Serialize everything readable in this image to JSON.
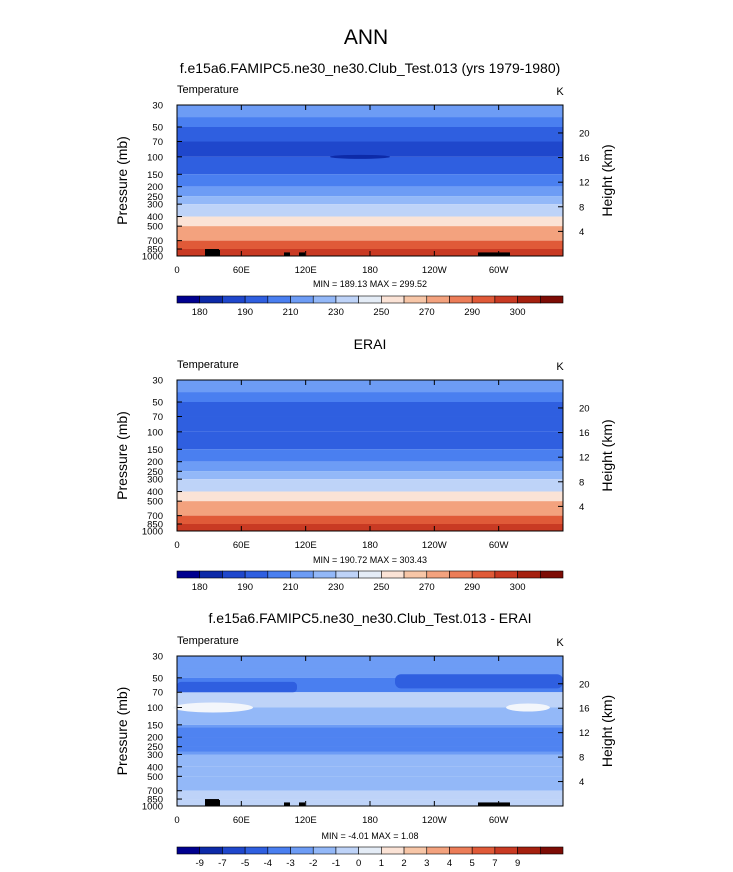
{
  "page": {
    "title": "ANN"
  },
  "colors": {
    "temp_palette": [
      "#00008f",
      "#0d2aa8",
      "#1f47cc",
      "#2f5fe0",
      "#4a7ff0",
      "#6d9cf5",
      "#93b8f8",
      "#bed3f8",
      "#e4ecf6",
      "#fbe3d6",
      "#f7c6a7",
      "#f3a27e",
      "#ec7d58",
      "#e05a38",
      "#c93a23",
      "#a5200f",
      "#7d0c05"
    ],
    "diff_palette": [
      "#00008f",
      "#0d2aa8",
      "#1f47cc",
      "#2f5fe0",
      "#4a7ff0",
      "#6d9cf5",
      "#93b8f8",
      "#bed3f8",
      "#e4ecf6",
      "#fbe3d6",
      "#f7c6a7",
      "#f3a27e",
      "#ec7d58",
      "#e05a38",
      "#c93a23",
      "#a5200f",
      "#7d0c05"
    ]
  },
  "panels": [
    {
      "title": "f.e15a6.FAMIPC5.ne30_ne30.Club_Test.013 (yrs 1979-1980)",
      "variable": "Temperature",
      "units": "K",
      "stats": "MIN = 189.13  MAX = 299.52",
      "colorbar_labels": [
        "180",
        "190",
        "210",
        "230",
        "250",
        "270",
        "290",
        "300"
      ]
    },
    {
      "title": "ERAI",
      "variable": "Temperature",
      "units": "K",
      "stats": "MIN = 190.72  MAX = 303.43",
      "colorbar_labels": [
        "180",
        "190",
        "210",
        "230",
        "250",
        "270",
        "290",
        "300"
      ]
    },
    {
      "title": "f.e15a6.FAMIPC5.ne30_ne30.Club_Test.013 - ERAI",
      "variable": "Temperature",
      "units": "K",
      "stats": "MIN = -4.01  MAX =  1.08",
      "colorbar_labels": [
        "-9",
        "-7",
        "-5",
        "-4",
        "-3",
        "-2",
        "-1",
        "0",
        "1",
        "2",
        "3",
        "4",
        "5",
        "7",
        "9"
      ]
    }
  ],
  "chart_data": [
    {
      "type": "heatmap",
      "title": "f.e15a6.FAMIPC5.ne30_ne30.Club_Test.013 (yrs 1979-1980)",
      "xlabel": "",
      "ylabel": "Pressure (mb)",
      "y2label": "Height (km)",
      "x_ticks": [
        "0",
        "60E",
        "120E",
        "180",
        "120W",
        "60W"
      ],
      "y_ticks": [
        "30",
        "50",
        "70",
        "100",
        "150",
        "200",
        "250",
        "300",
        "400",
        "500",
        "700",
        "850",
        "1000"
      ],
      "y2_ticks": [
        "20",
        "16",
        "12",
        "8",
        "4"
      ],
      "pressure_levels": [
        30,
        50,
        70,
        100,
        150,
        200,
        250,
        300,
        400,
        500,
        700,
        850,
        1000
      ],
      "band_color_index": [
        5,
        4,
        3,
        2,
        3,
        4,
        5,
        6,
        7,
        9,
        11,
        13,
        14,
        16
      ],
      "min": 189.13,
      "max": 299.52
    },
    {
      "type": "heatmap",
      "title": "ERAI",
      "xlabel": "",
      "ylabel": "Pressure (mb)",
      "y2label": "Height (km)",
      "x_ticks": [
        "0",
        "60E",
        "120E",
        "180",
        "120W",
        "60W"
      ],
      "y_ticks": [
        "30",
        "50",
        "70",
        "100",
        "150",
        "200",
        "250",
        "300",
        "400",
        "500",
        "700",
        "850",
        "1000"
      ],
      "y2_ticks": [
        "20",
        "16",
        "12",
        "8",
        "4"
      ],
      "pressure_levels": [
        30,
        50,
        70,
        100,
        150,
        200,
        250,
        300,
        400,
        500,
        700,
        850,
        1000
      ],
      "band_color_index": [
        5,
        4,
        3,
        3,
        3,
        4,
        5,
        6,
        7,
        9,
        11,
        13,
        14,
        16
      ],
      "min": 190.72,
      "max": 303.43
    },
    {
      "type": "heatmap",
      "title": "f.e15a6.FAMIPC5.ne30_ne30.Club_Test.013 - ERAI",
      "xlabel": "",
      "ylabel": "Pressure (mb)",
      "y2label": "Height (km)",
      "x_ticks": [
        "0",
        "60E",
        "120E",
        "180",
        "120W",
        "60W"
      ],
      "y_ticks": [
        "30",
        "50",
        "70",
        "100",
        "150",
        "200",
        "250",
        "300",
        "400",
        "500",
        "700",
        "850",
        "1000"
      ],
      "y2_ticks": [
        "20",
        "16",
        "12",
        "8",
        "4"
      ],
      "pressure_levels": [
        30,
        50,
        70,
        100,
        150,
        200,
        250,
        300,
        400,
        500,
        700,
        850,
        1000
      ],
      "band_color_index": [
        5,
        5,
        4,
        7,
        6,
        5,
        5,
        5,
        6,
        6,
        6,
        7,
        7,
        7
      ],
      "min": -4.01,
      "max": 1.08
    }
  ]
}
